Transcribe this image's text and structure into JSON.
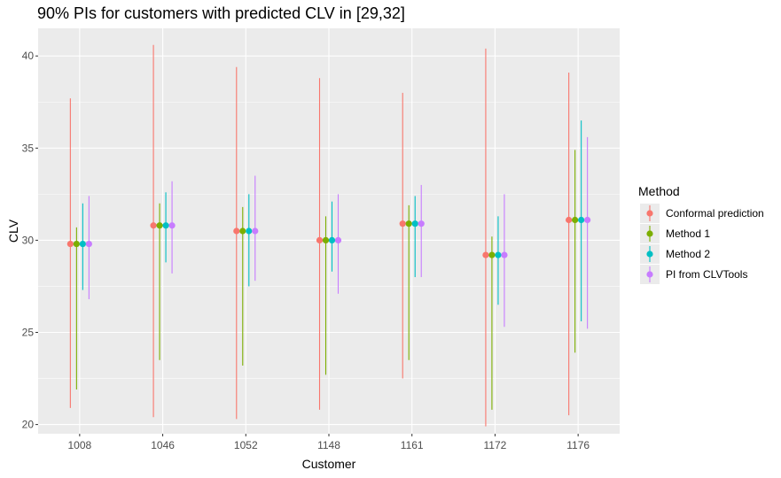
{
  "chart_data": {
    "type": "scatter",
    "title": "90% PIs for customers with predicted CLV in [29,32]",
    "xlabel": "Customer",
    "ylabel": "CLV",
    "categories": [
      "1008",
      "1046",
      "1052",
      "1148",
      "1161",
      "1172",
      "1176"
    ],
    "yticks": [
      20,
      25,
      30,
      35,
      40
    ],
    "ylim": [
      19.5,
      41.5
    ],
    "grid": true,
    "legend_title": "Method",
    "legend_position": "right",
    "series": [
      {
        "name": "Conformal prediction",
        "color": "#F8766D",
        "point": [
          29.8,
          30.8,
          30.5,
          30.0,
          30.9,
          29.2,
          31.1
        ],
        "lower": [
          20.9,
          20.4,
          20.3,
          20.8,
          22.5,
          19.9,
          20.5
        ],
        "upper": [
          37.7,
          40.6,
          39.4,
          38.8,
          38.0,
          40.4,
          39.1
        ]
      },
      {
        "name": "Method 1",
        "color": "#7CAE00",
        "point": [
          29.8,
          30.8,
          30.5,
          30.0,
          30.9,
          29.2,
          31.1
        ],
        "lower": [
          21.9,
          23.5,
          23.2,
          22.7,
          23.5,
          20.8,
          23.9
        ],
        "upper": [
          30.7,
          32.0,
          31.8,
          31.3,
          31.9,
          30.2,
          34.9
        ]
      },
      {
        "name": "Method 2",
        "color": "#00BFC4",
        "point": [
          29.8,
          30.8,
          30.5,
          30.0,
          30.9,
          29.2,
          31.1
        ],
        "lower": [
          27.3,
          28.8,
          27.5,
          28.3,
          28.0,
          26.5,
          25.6
        ],
        "upper": [
          32.0,
          32.6,
          32.5,
          32.1,
          32.4,
          31.3,
          36.5
        ]
      },
      {
        "name": "PI from CLVTools",
        "color": "#C77CFF",
        "point": [
          29.8,
          30.8,
          30.5,
          30.0,
          30.9,
          29.2,
          31.1
        ],
        "lower": [
          26.8,
          28.2,
          27.8,
          27.1,
          28.0,
          25.3,
          25.2
        ],
        "upper": [
          32.4,
          33.2,
          33.5,
          32.5,
          33.0,
          32.5,
          35.6
        ]
      }
    ]
  }
}
